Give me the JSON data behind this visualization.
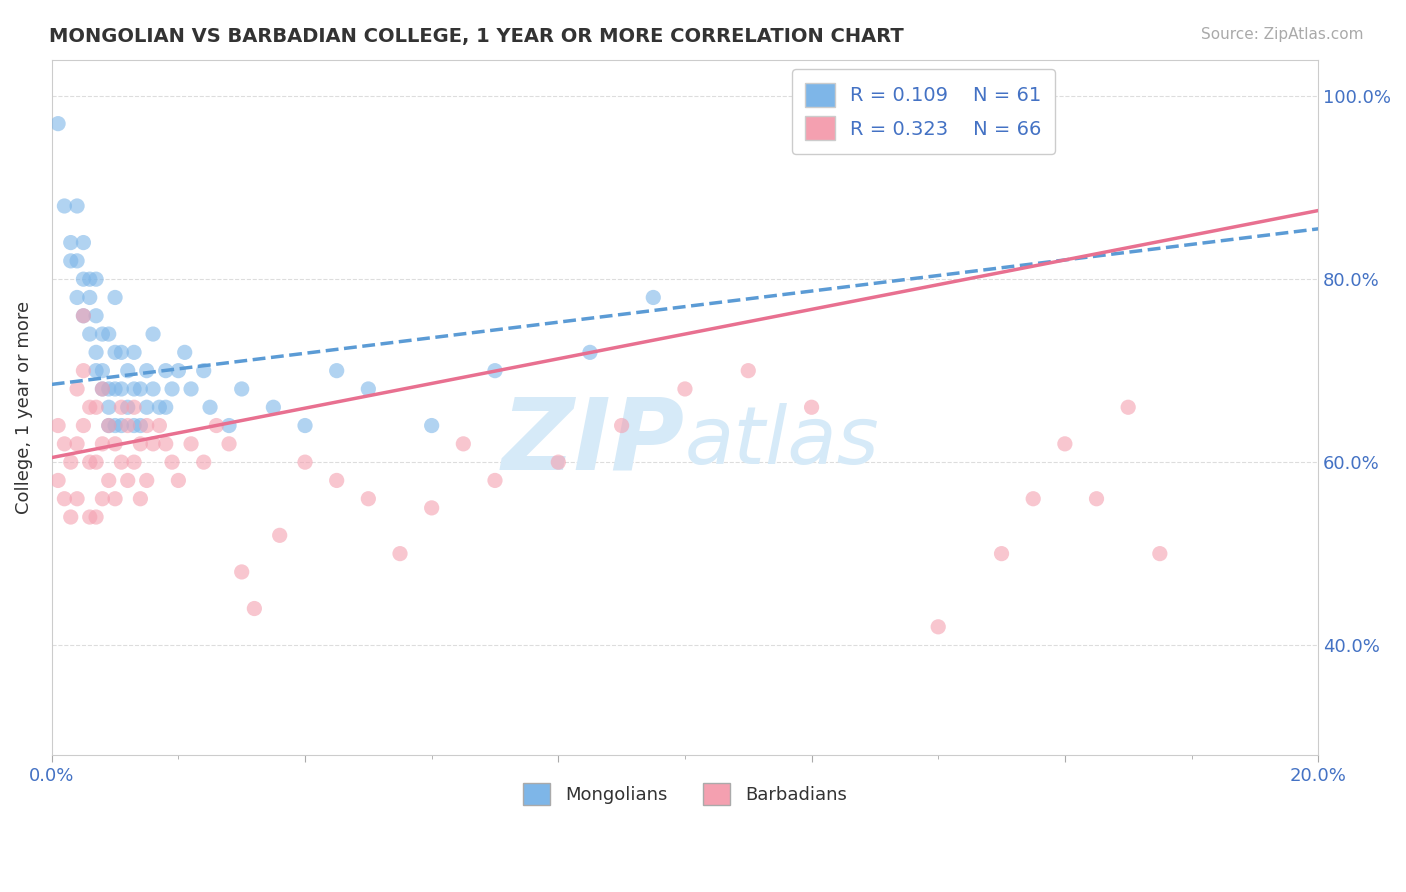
{
  "title": "MONGOLIAN VS BARBADIAN COLLEGE, 1 YEAR OR MORE CORRELATION CHART",
  "source_text": "Source: ZipAtlas.com",
  "ylabel": "College, 1 year or more",
  "legend_label1": "Mongolians",
  "legend_label2": "Barbadians",
  "r1": 0.109,
  "n1": 61,
  "r2": 0.323,
  "n2": 66,
  "xlim": [
    0.0,
    0.2
  ],
  "ylim": [
    0.28,
    1.04
  ],
  "xticks": [
    0.0,
    0.04,
    0.08,
    0.12,
    0.16,
    0.2
  ],
  "xtick_labels": [
    "0.0%",
    "",
    "",
    "",
    "",
    "20.0%"
  ],
  "yticks": [
    0.4,
    0.6,
    0.8,
    1.0
  ],
  "ytick_labels": [
    "40.0%",
    "60.0%",
    "80.0%",
    "100.0%"
  ],
  "color_mongolian": "#7EB6E8",
  "color_barbadian": "#F4A0B0",
  "color_line_mongolian": "#5B9BD5",
  "color_line_barbadian": "#E87090",
  "watermark_color": "#D6EAF8",
  "background_color": "#FFFFFF",
  "mongolian_x": [
    0.001,
    0.002,
    0.003,
    0.003,
    0.004,
    0.004,
    0.004,
    0.005,
    0.005,
    0.005,
    0.006,
    0.006,
    0.006,
    0.007,
    0.007,
    0.007,
    0.007,
    0.008,
    0.008,
    0.008,
    0.009,
    0.009,
    0.009,
    0.009,
    0.01,
    0.01,
    0.01,
    0.01,
    0.011,
    0.011,
    0.011,
    0.012,
    0.012,
    0.013,
    0.013,
    0.013,
    0.014,
    0.014,
    0.015,
    0.015,
    0.016,
    0.016,
    0.017,
    0.018,
    0.018,
    0.019,
    0.02,
    0.021,
    0.022,
    0.024,
    0.025,
    0.028,
    0.03,
    0.035,
    0.04,
    0.045,
    0.05,
    0.06,
    0.07,
    0.085,
    0.095
  ],
  "mongolian_y": [
    0.97,
    0.88,
    0.84,
    0.82,
    0.88,
    0.82,
    0.78,
    0.8,
    0.76,
    0.84,
    0.8,
    0.78,
    0.74,
    0.76,
    0.72,
    0.8,
    0.7,
    0.74,
    0.7,
    0.68,
    0.74,
    0.68,
    0.66,
    0.64,
    0.72,
    0.68,
    0.64,
    0.78,
    0.72,
    0.68,
    0.64,
    0.7,
    0.66,
    0.72,
    0.68,
    0.64,
    0.68,
    0.64,
    0.7,
    0.66,
    0.68,
    0.74,
    0.66,
    0.7,
    0.66,
    0.68,
    0.7,
    0.72,
    0.68,
    0.7,
    0.66,
    0.64,
    0.68,
    0.66,
    0.64,
    0.7,
    0.68,
    0.64,
    0.7,
    0.72,
    0.78
  ],
  "barbadian_x": [
    0.001,
    0.001,
    0.002,
    0.002,
    0.003,
    0.003,
    0.004,
    0.004,
    0.004,
    0.005,
    0.005,
    0.005,
    0.006,
    0.006,
    0.006,
    0.007,
    0.007,
    0.007,
    0.008,
    0.008,
    0.008,
    0.009,
    0.009,
    0.01,
    0.01,
    0.011,
    0.011,
    0.012,
    0.012,
    0.013,
    0.013,
    0.014,
    0.014,
    0.015,
    0.015,
    0.016,
    0.017,
    0.018,
    0.019,
    0.02,
    0.022,
    0.024,
    0.026,
    0.028,
    0.03,
    0.032,
    0.036,
    0.04,
    0.045,
    0.05,
    0.055,
    0.06,
    0.065,
    0.07,
    0.08,
    0.09,
    0.1,
    0.11,
    0.12,
    0.14,
    0.15,
    0.155,
    0.16,
    0.165,
    0.17,
    0.175
  ],
  "barbadian_y": [
    0.64,
    0.58,
    0.62,
    0.56,
    0.6,
    0.54,
    0.68,
    0.62,
    0.56,
    0.76,
    0.7,
    0.64,
    0.66,
    0.6,
    0.54,
    0.66,
    0.6,
    0.54,
    0.68,
    0.62,
    0.56,
    0.64,
    0.58,
    0.62,
    0.56,
    0.66,
    0.6,
    0.64,
    0.58,
    0.66,
    0.6,
    0.62,
    0.56,
    0.64,
    0.58,
    0.62,
    0.64,
    0.62,
    0.6,
    0.58,
    0.62,
    0.6,
    0.64,
    0.62,
    0.48,
    0.44,
    0.52,
    0.6,
    0.58,
    0.56,
    0.5,
    0.55,
    0.62,
    0.58,
    0.6,
    0.64,
    0.68,
    0.7,
    0.66,
    0.42,
    0.5,
    0.56,
    0.62,
    0.56,
    0.66,
    0.5
  ]
}
